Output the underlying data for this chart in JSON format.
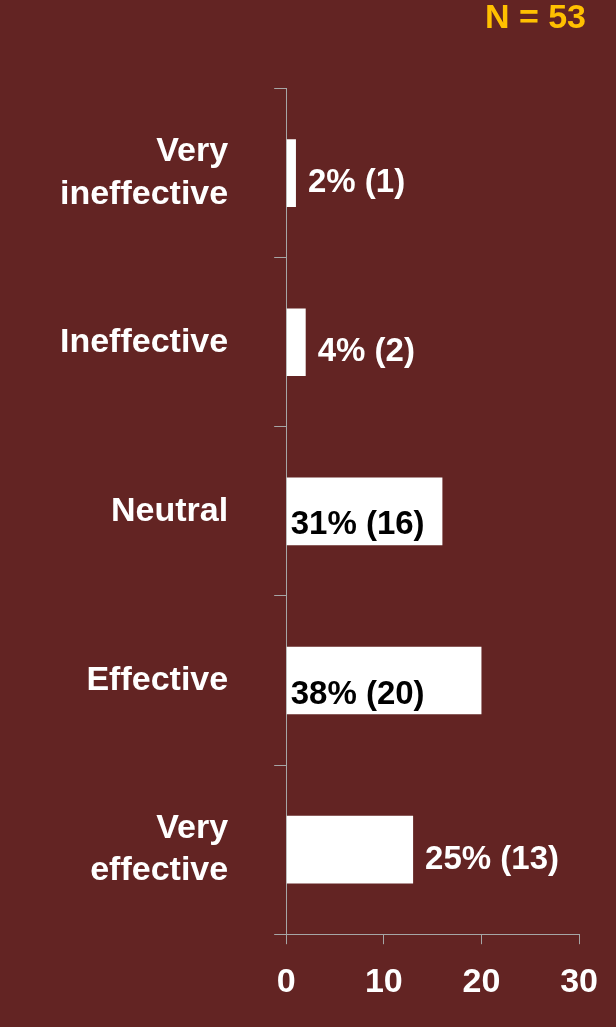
{
  "chart_data": {
    "type": "bar",
    "orientation": "horizontal",
    "categories": [
      "Very ineffective",
      "Ineffective",
      "Neutral",
      "Effective",
      "Very effective"
    ],
    "values": [
      1,
      2,
      16,
      20,
      13
    ],
    "value_labels": [
      "2% (1)",
      "4% (2)",
      "31% (16)",
      "38% (20)",
      "25% (13)"
    ],
    "color": "#ffffff",
    "xlim": [
      0,
      30
    ],
    "xticks": [
      0,
      10,
      20,
      30
    ],
    "grid": false,
    "legend": false,
    "annotations": [
      "N = 53"
    ]
  }
}
